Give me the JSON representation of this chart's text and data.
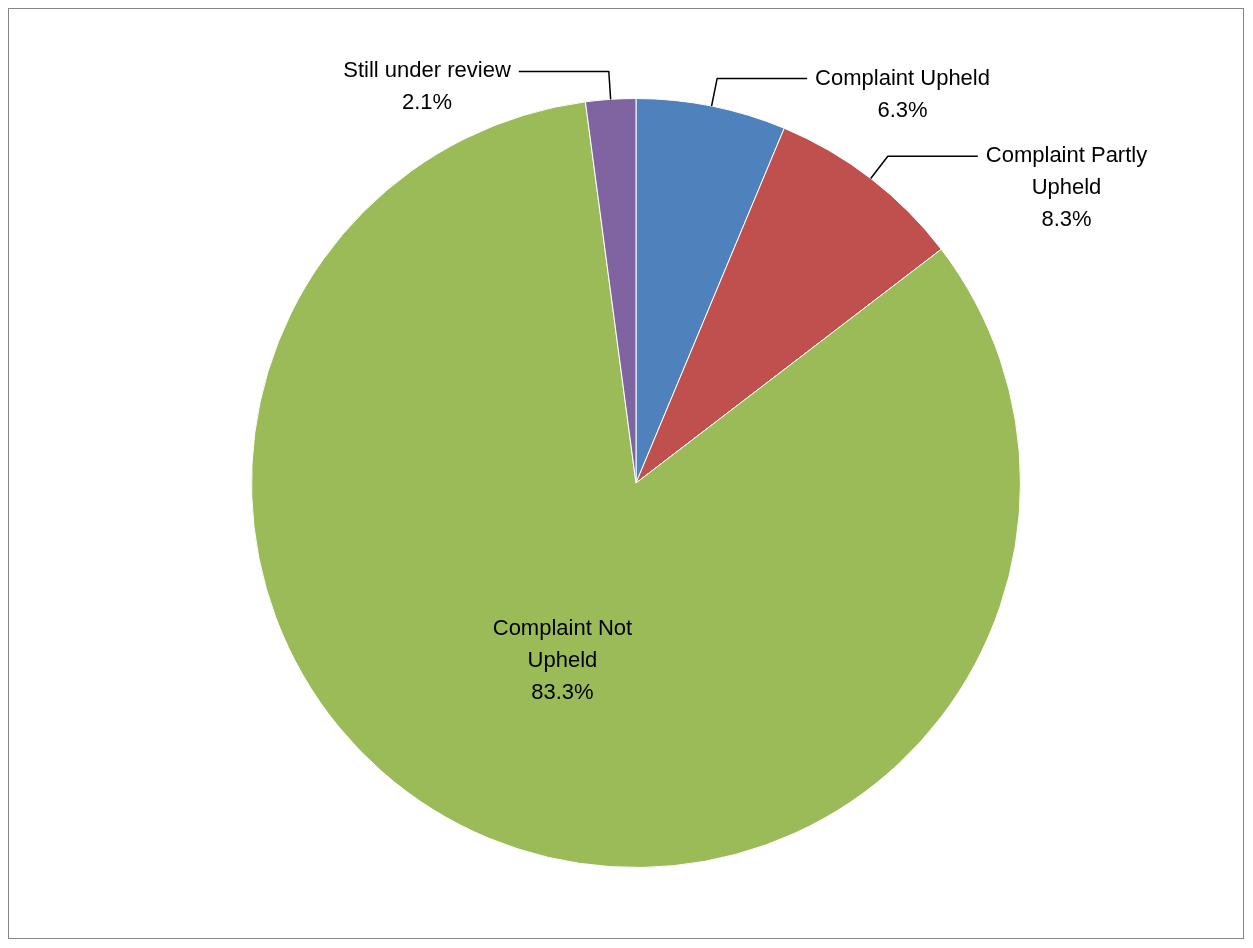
{
  "chart_data": {
    "type": "pie",
    "categories": [
      "Complaint Upheld",
      "Complaint Partly Upheld",
      "Complaint Not Upheld",
      "Still under review"
    ],
    "values": [
      6.3,
      8.3,
      83.3,
      2.1
    ],
    "colors": [
      "#4f81bd",
      "#c0504d",
      "#9bbb59",
      "#8064a2"
    ],
    "value_labels": [
      "6.3%",
      "8.3%",
      "83.3%",
      "2.1%"
    ]
  }
}
